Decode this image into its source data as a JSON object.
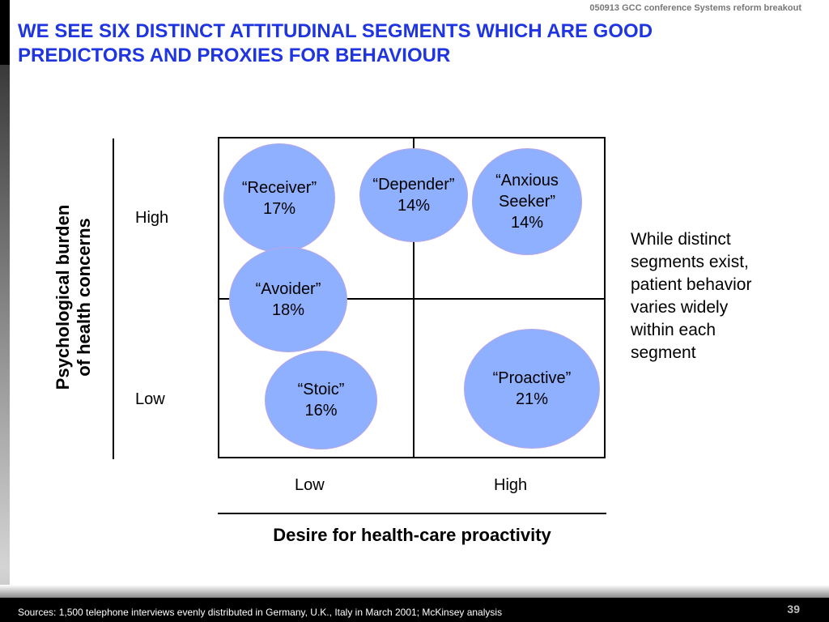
{
  "header": {
    "meta": "050913 GCC conference Systems reform breakout",
    "title_lines": [
      "WE SEE SIX DISTINCT ATTITUDINAL SEGMENTS WHICH ARE GOOD",
      "PREDICTORS AND PROXIES FOR BEHAVIOUR"
    ]
  },
  "diagram": {
    "y_axis": {
      "label_lines": [
        "Psychological burden",
        "of health concerns"
      ],
      "high": "High",
      "low": "Low"
    },
    "x_axis": {
      "label": "Desire for health-care proactivity",
      "low": "Low",
      "high": "High"
    },
    "segments": [
      {
        "name_lines": [
          "“Receiver”"
        ],
        "share": "17%"
      },
      {
        "name_lines": [
          "“Depender”"
        ],
        "share": "14%"
      },
      {
        "name_lines": [
          "“Anxious",
          "Seeker”"
        ],
        "share": "14%"
      },
      {
        "name_lines": [
          "“Avoider”"
        ],
        "share": "18%"
      },
      {
        "name_lines": [
          "“Stoic”"
        ],
        "share": "16%"
      },
      {
        "name_lines": [
          "“Proactive”"
        ],
        "share": "21%"
      }
    ],
    "colors": {
      "bubble_fill": "#8fb0ff",
      "bubble_border": "#b8a5e8",
      "title": "#1f35e0"
    }
  },
  "side_note": {
    "lines": [
      "While distinct",
      "segments exist,",
      "patient behavior",
      "varies widely",
      "within each",
      "segment"
    ]
  },
  "footer": {
    "sources": "Sources: 1,500 telephone interviews evenly distributed in Germany, U.K., Italy in March 2001; McKinsey analysis",
    "page_number": "39"
  }
}
